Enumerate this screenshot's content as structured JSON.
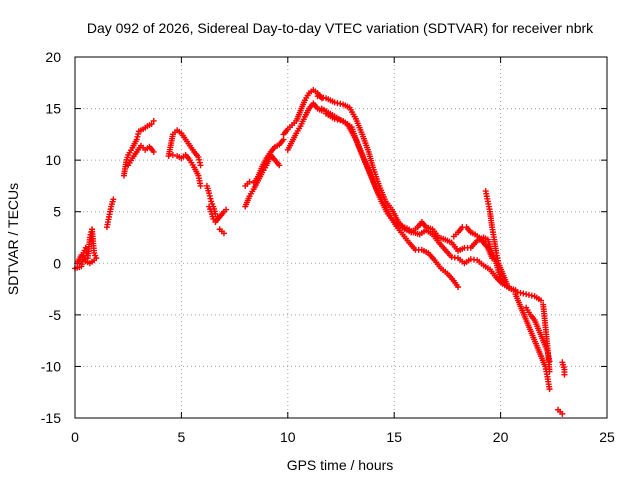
{
  "chart_data": {
    "type": "scatter",
    "title": "Day 092 of 2026, Sidereal Day-to-day VTEC variation (SDTVAR) for receiver nbrk",
    "xlabel": "GPS time / hours",
    "ylabel": "SDTVAR / TECUs",
    "xlim": [
      0,
      25
    ],
    "ylim": [
      -15,
      20
    ],
    "xticks": [
      0,
      5,
      10,
      15,
      20,
      25
    ],
    "yticks": [
      -15,
      -10,
      -5,
      0,
      5,
      10,
      15,
      20
    ],
    "xtick_labels": [
      "0",
      "5",
      "10",
      "15",
      "20",
      "25"
    ],
    "ytick_labels": [
      "-15",
      "-10",
      "-5",
      "0",
      "5",
      "10",
      "15",
      "20"
    ],
    "grid": true,
    "marker": "+",
    "color": "#ff0000",
    "series": [
      {
        "name": "SDTVAR",
        "segments": [
          [
            [
              0.0,
              -0.5
            ],
            [
              0.3,
              -0.3
            ],
            [
              0.4,
              1.0
            ],
            [
              0.5,
              1.5
            ],
            [
              0.6,
              0.5
            ],
            [
              0.7,
              2.5
            ],
            [
              0.8,
              3.3
            ],
            [
              0.9,
              1.0
            ],
            [
              1.0,
              0.5
            ]
          ],
          [
            [
              0.1,
              0.0
            ],
            [
              0.3,
              0.8
            ],
            [
              0.5,
              0.2
            ],
            [
              0.7,
              0.0
            ],
            [
              0.9,
              0.3
            ]
          ],
          [
            [
              1.5,
              3.5
            ],
            [
              1.6,
              4.5
            ],
            [
              1.7,
              5.5
            ],
            [
              1.8,
              6.2
            ]
          ],
          [
            [
              2.3,
              8.5
            ],
            [
              2.4,
              9.8
            ],
            [
              2.5,
              10.5
            ],
            [
              2.7,
              11.2
            ],
            [
              2.9,
              12.0
            ],
            [
              3.0,
              12.8
            ],
            [
              3.2,
              13.0
            ],
            [
              3.4,
              13.3
            ],
            [
              3.6,
              13.5
            ],
            [
              3.7,
              13.8
            ]
          ],
          [
            [
              2.5,
              9.5
            ],
            [
              2.7,
              10.2
            ],
            [
              2.9,
              10.8
            ],
            [
              3.1,
              11.4
            ],
            [
              3.3,
              11.0
            ],
            [
              3.5,
              11.3
            ],
            [
              3.7,
              10.8
            ]
          ],
          [
            [
              4.4,
              10.4
            ],
            [
              4.6,
              12.5
            ],
            [
              4.8,
              12.9
            ],
            [
              5.0,
              12.6
            ],
            [
              5.2,
              12.0
            ],
            [
              5.4,
              11.4
            ],
            [
              5.6,
              10.8
            ],
            [
              5.8,
              10.3
            ],
            [
              5.9,
              9.5
            ]
          ],
          [
            [
              4.6,
              10.5
            ],
            [
              4.8,
              10.4
            ],
            [
              5.0,
              10.2
            ],
            [
              5.2,
              10.5
            ],
            [
              5.4,
              10.0
            ],
            [
              5.6,
              9.3
            ],
            [
              5.8,
              8.5
            ],
            [
              5.9,
              7.5
            ]
          ],
          [
            [
              6.2,
              7.5
            ],
            [
              6.3,
              6.8
            ],
            [
              6.4,
              6.0
            ],
            [
              6.5,
              5.5
            ],
            [
              6.6,
              4.8
            ],
            [
              6.7,
              4.5
            ]
          ],
          [
            [
              6.3,
              5.5
            ],
            [
              6.4,
              5.0
            ],
            [
              6.5,
              4.3
            ],
            [
              6.6,
              4.0
            ],
            [
              6.8,
              4.5
            ],
            [
              7.0,
              5.0
            ],
            [
              7.1,
              5.2
            ]
          ],
          [
            [
              6.8,
              3.3
            ],
            [
              7.0,
              2.9
            ]
          ],
          [
            [
              8.0,
              7.5
            ],
            [
              8.2,
              7.9
            ],
            [
              8.4,
              7.8
            ],
            [
              8.6,
              8.4
            ],
            [
              8.8,
              9.4
            ],
            [
              9.0,
              10.2
            ],
            [
              9.2,
              10.8
            ],
            [
              9.4,
              11.3
            ],
            [
              9.6,
              11.5
            ],
            [
              9.8,
              12.0
            ]
          ],
          [
            [
              8.0,
              5.5
            ],
            [
              8.2,
              6.5
            ],
            [
              8.4,
              7.2
            ],
            [
              8.6,
              8.0
            ],
            [
              8.8,
              8.8
            ],
            [
              9.0,
              9.5
            ],
            [
              9.2,
              10.5
            ],
            [
              9.4,
              10.0
            ],
            [
              9.6,
              9.5
            ]
          ],
          [
            [
              9.8,
              12.5
            ],
            [
              10.0,
              13.0
            ],
            [
              10.2,
              13.4
            ],
            [
              10.4,
              13.8
            ],
            [
              10.6,
              14.8
            ],
            [
              10.8,
              15.8
            ],
            [
              11.0,
              16.5
            ],
            [
              11.2,
              16.8
            ],
            [
              11.4,
              16.5
            ],
            [
              11.6,
              16.0
            ]
          ],
          [
            [
              10.0,
              11.0
            ],
            [
              10.2,
              11.8
            ],
            [
              10.4,
              12.6
            ],
            [
              10.6,
              13.3
            ],
            [
              10.8,
              14.2
            ],
            [
              11.0,
              15.0
            ],
            [
              11.2,
              15.5
            ],
            [
              11.4,
              15.0
            ],
            [
              11.6,
              14.8
            ]
          ],
          [
            [
              11.4,
              16.2
            ],
            [
              11.8,
              16.0
            ],
            [
              12.2,
              15.6
            ],
            [
              12.6,
              15.4
            ],
            [
              12.9,
              15.1
            ],
            [
              13.2,
              14.0
            ],
            [
              13.5,
              12.5
            ],
            [
              13.8,
              10.8
            ],
            [
              14.0,
              9.3
            ],
            [
              14.3,
              7.5
            ],
            [
              14.6,
              6.0
            ],
            [
              14.9,
              5.2
            ],
            [
              15.2,
              4.0
            ],
            [
              15.5,
              3.3
            ],
            [
              15.8,
              3.0
            ],
            [
              16.1,
              3.5
            ],
            [
              16.3,
              4.0
            ],
            [
              16.5,
              3.5
            ],
            [
              16.8,
              3.3
            ],
            [
              17.1,
              2.5
            ],
            [
              17.4,
              2.3
            ],
            [
              17.7,
              2.0
            ],
            [
              18.0,
              1.2
            ],
            [
              18.3,
              1.5
            ],
            [
              18.6,
              1.5
            ],
            [
              18.9,
              2.2
            ],
            [
              19.2,
              2.5
            ],
            [
              19.4,
              2.3
            ],
            [
              19.6,
              1.0
            ],
            [
              19.8,
              0.0
            ],
            [
              20.0,
              -1.5
            ],
            [
              20.4,
              -2.4
            ],
            [
              20.8,
              -2.8
            ],
            [
              21.2,
              -3.0
            ],
            [
              21.6,
              -3.2
            ],
            [
              21.9,
              -3.6
            ]
          ],
          [
            [
              11.6,
              15.0
            ],
            [
              12.0,
              14.5
            ],
            [
              12.4,
              14.0
            ],
            [
              12.8,
              13.5
            ],
            [
              13.2,
              12.0
            ],
            [
              13.5,
              10.5
            ],
            [
              13.8,
              9.0
            ],
            [
              14.1,
              7.5
            ],
            [
              14.4,
              6.0
            ],
            [
              14.7,
              4.8
            ],
            [
              15.0,
              4.0
            ],
            [
              15.3,
              3.6
            ],
            [
              15.6,
              3.4
            ],
            [
              15.9,
              3.0
            ],
            [
              16.2,
              2.8
            ],
            [
              16.5,
              3.2
            ],
            [
              16.8,
              2.8
            ],
            [
              17.1,
              2.0
            ],
            [
              17.4,
              1.3
            ],
            [
              17.7,
              0.6
            ],
            [
              18.0,
              0.5
            ],
            [
              18.3,
              0.0
            ],
            [
              18.6,
              0.4
            ],
            [
              18.9,
              0.3
            ],
            [
              19.2,
              -0.2
            ],
            [
              19.5,
              -0.6
            ],
            [
              19.8,
              -1.4
            ],
            [
              20.1,
              -2.0
            ],
            [
              20.4,
              -2.4
            ],
            [
              20.7,
              -2.6
            ]
          ],
          [
            [
              11.8,
              14.5
            ],
            [
              12.2,
              14.0
            ],
            [
              12.6,
              13.8
            ],
            [
              13.0,
              13.2
            ],
            [
              13.3,
              11.5
            ],
            [
              13.6,
              10.0
            ],
            [
              13.9,
              8.5
            ],
            [
              14.2,
              7.0
            ],
            [
              14.5,
              5.8
            ],
            [
              14.8,
              4.6
            ],
            [
              15.1,
              3.6
            ],
            [
              15.4,
              2.8
            ],
            [
              15.7,
              2.0
            ],
            [
              16.0,
              1.3
            ],
            [
              16.3,
              1.3
            ],
            [
              16.6,
              1.0
            ],
            [
              16.9,
              0.3
            ],
            [
              17.2,
              -0.5
            ],
            [
              17.5,
              -1.0
            ],
            [
              17.8,
              -1.7
            ],
            [
              18.0,
              -2.3
            ]
          ],
          [
            [
              17.8,
              2.6
            ],
            [
              18.0,
              3.0
            ],
            [
              18.2,
              3.5
            ],
            [
              18.4,
              3.5
            ],
            [
              18.6,
              3.0
            ],
            [
              18.8,
              2.8
            ],
            [
              19.0,
              2.5
            ],
            [
              19.2,
              2.0
            ],
            [
              19.4,
              1.5
            ],
            [
              19.6,
              0.5
            ]
          ],
          [
            [
              19.3,
              7.0
            ],
            [
              19.4,
              6.0
            ],
            [
              19.5,
              5.0
            ],
            [
              19.6,
              3.5
            ],
            [
              19.7,
              2.3
            ],
            [
              19.8,
              1.0
            ],
            [
              19.9,
              0.0
            ],
            [
              20.1,
              -1.0
            ],
            [
              20.3,
              -2.0
            ]
          ],
          [
            [
              20.7,
              -3.0
            ],
            [
              20.9,
              -4.0
            ],
            [
              21.1,
              -5.0
            ],
            [
              21.3,
              -6.0
            ],
            [
              21.5,
              -7.0
            ],
            [
              21.7,
              -8.0
            ],
            [
              21.9,
              -9.0
            ],
            [
              22.1,
              -10.0
            ],
            [
              22.2,
              -11.0
            ],
            [
              22.3,
              -12.2
            ]
          ],
          [
            [
              21.2,
              -4.3
            ],
            [
              21.4,
              -5.0
            ],
            [
              21.6,
              -5.5
            ],
            [
              21.8,
              -6.5
            ],
            [
              22.0,
              -7.5
            ],
            [
              22.2,
              -8.5
            ],
            [
              22.3,
              -9.5
            ]
          ],
          [
            [
              22.0,
              -4.0
            ],
            [
              22.1,
              -6.0
            ],
            [
              22.2,
              -8.0
            ],
            [
              22.3,
              -10.5
            ]
          ],
          [
            [
              22.9,
              -9.6
            ],
            [
              23.0,
              -10.3
            ],
            [
              23.0,
              -10.8
            ]
          ],
          [
            [
              22.7,
              -14.2
            ],
            [
              22.8,
              -14.4
            ],
            [
              22.9,
              -14.6
            ]
          ]
        ]
      }
    ]
  }
}
